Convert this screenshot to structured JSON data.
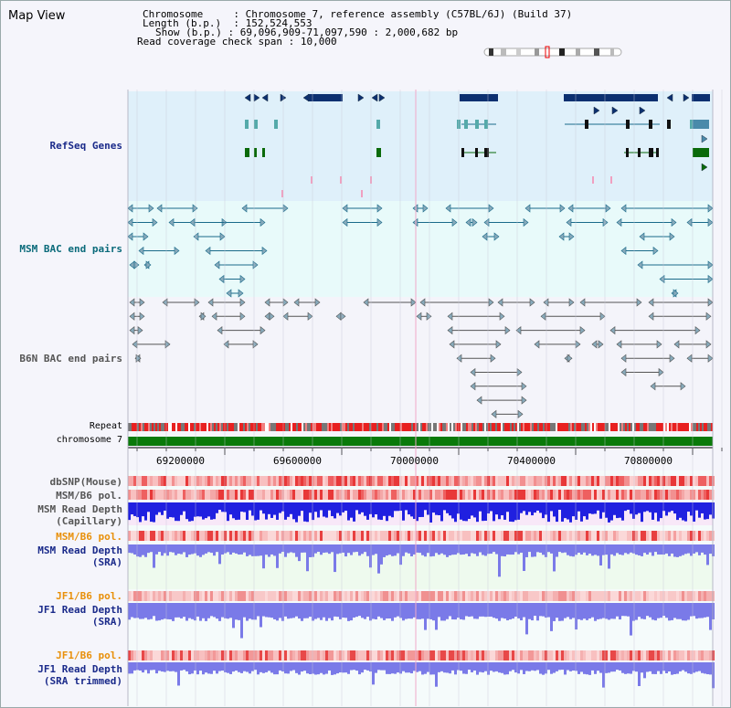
{
  "app": {
    "title": "Map View"
  },
  "header": {
    "chromosome_key": "Chromosome",
    "chromosome_val": "Chromosome 7, reference assembly (C57BL/6J) (Build 37)",
    "length_key": "Length (b.p.)",
    "length_val": "152,524,553",
    "show_key": "Show (b.p.)",
    "show_val": "69,096,909-71,097,590 : 2,000,682 bp",
    "coverage_key": "Read coverage check span",
    "coverage_val": "10,000"
  },
  "tracks": {
    "refseq": "RefSeq Genes",
    "msm_bac": "MSM BAC end pairs",
    "b6n_bac": "B6N BAC end pairs",
    "repeat": "Repeat",
    "chromosome": "chromosome 7",
    "dbsnp": "dbSNP(Mouse)",
    "msm_b6_pol_1": "MSM/B6 pol.",
    "msm_depth_cap_1": "MSM Read Depth",
    "msm_depth_cap_2": "(Capillary)",
    "msm_b6_pol_2": "MSM/B6 pol.",
    "msm_depth_sra_1": "MSM Read Depth",
    "msm_depth_sra_2": "(SRA)",
    "jf1_b6_pol_1": "JF1/B6 pol.",
    "jf1_depth_sra_1": "JF1 Read Depth",
    "jf1_depth_sra_2": "(SRA)",
    "jf1_b6_pol_2": "JF1/B6 pol.",
    "jf1_depth_trim_1": "JF1 Read Depth",
    "jf1_depth_trim_2": "(SRA trimmed)"
  },
  "axis": {
    "ticks": [
      "69200000",
      "69600000",
      "70000000",
      "70400000",
      "70800000"
    ]
  },
  "colors": {
    "refseq_bg": "#dff0fa",
    "bac_bg": "#e8fafa",
    "gene_navy": "#0c3070",
    "gene_green": "#0a6a0a",
    "bac_line": "#1a6a8a",
    "b6n_line": "#555555",
    "repeat_red": "#e82020",
    "chrom_green": "#0a7a0a",
    "depth_blue": "#2020e0",
    "depth_light": "#7a7ae8"
  }
}
